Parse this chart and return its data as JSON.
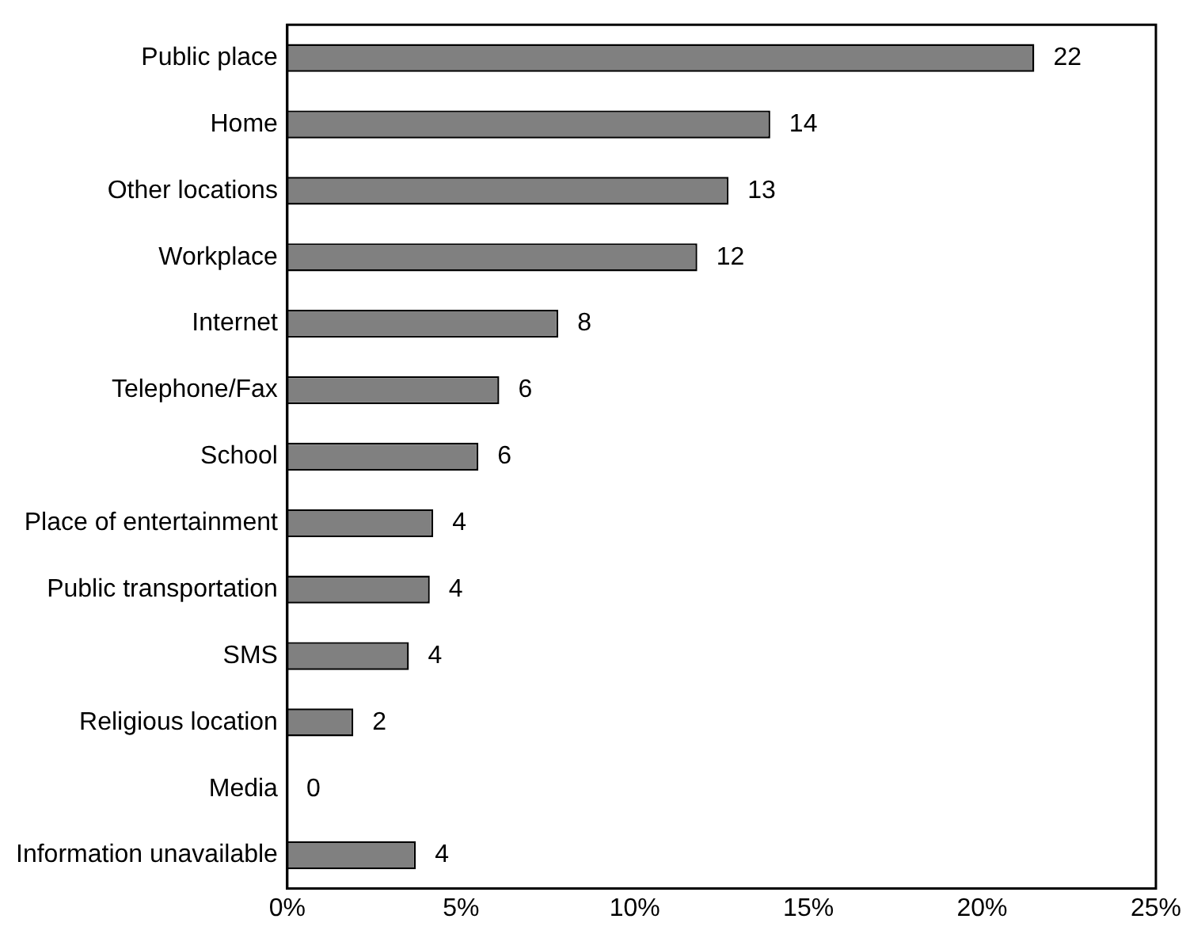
{
  "chart_data": {
    "type": "bar",
    "orientation": "horizontal",
    "categories": [
      "Public place",
      "Home",
      "Other locations",
      "Workplace",
      "Internet",
      "Telephone/Fax",
      "School",
      "Place of entertainment",
      "Public transportation",
      "SMS",
      "Religious location",
      "Media",
      "Information unavailable"
    ],
    "values": [
      21.5,
      13.9,
      12.7,
      11.8,
      7.8,
      6.1,
      5.5,
      4.2,
      4.1,
      3.5,
      1.9,
      0,
      3.7
    ],
    "value_labels": [
      "22",
      "14",
      "13",
      "12",
      "8",
      "6",
      "6",
      "4",
      "4",
      "4",
      "2",
      "0",
      "4"
    ],
    "color": "#808080",
    "xlim": [
      0,
      25
    ],
    "xticks": [
      {
        "value": 0,
        "label": "0%"
      },
      {
        "value": 5,
        "label": "5%"
      },
      {
        "value": 10,
        "label": "10%"
      },
      {
        "value": 15,
        "label": "15%"
      },
      {
        "value": 20,
        "label": "20%"
      },
      {
        "value": 25,
        "label": "25%"
      }
    ],
    "grid": false,
    "legend": false
  }
}
